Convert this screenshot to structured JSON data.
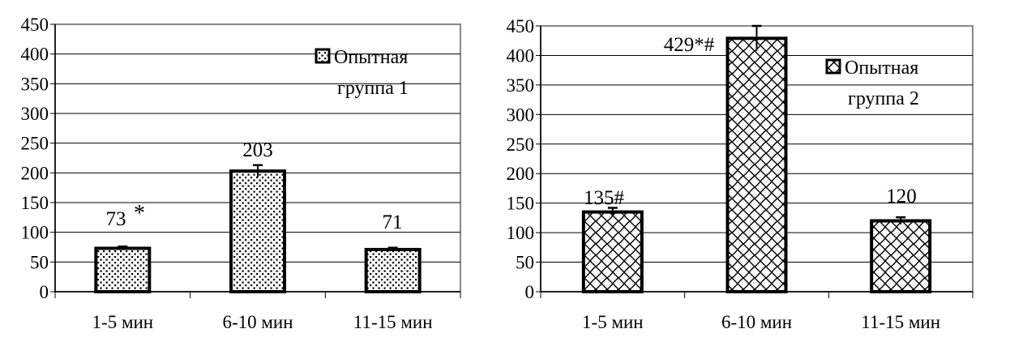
{
  "chart_data": [
    {
      "type": "bar",
      "categories": [
        "1-5 мин",
        "6-10 мин",
        "11-15 мин"
      ],
      "values": [
        73,
        203,
        71
      ],
      "errors": [
        3,
        10,
        3
      ],
      "data_labels": [
        "73",
        "203",
        "71"
      ],
      "annotations": [
        "*",
        "",
        ""
      ],
      "series": [
        {
          "name": "Опытная группа 1",
          "values": [
            73,
            203,
            71
          ]
        }
      ],
      "legend": {
        "line1": "Опытная",
        "line2": "группа 1",
        "placement": "top-right"
      },
      "yticks": [
        "0",
        "50",
        "100",
        "150",
        "200",
        "250",
        "300",
        "350",
        "400",
        "450"
      ],
      "ylim": [
        0,
        450
      ],
      "grid": true,
      "pattern": "dots",
      "title": "",
      "xlabel": "",
      "ylabel": ""
    },
    {
      "type": "bar",
      "categories": [
        "1-5 мин",
        "6-10 мин",
        "11-15 мин"
      ],
      "values": [
        135,
        429,
        120
      ],
      "errors": [
        7,
        21,
        6
      ],
      "data_labels": [
        "135#",
        "429*#",
        "120"
      ],
      "annotations": [
        "",
        "",
        ""
      ],
      "series": [
        {
          "name": "Опытная группа 2",
          "values": [
            135,
            429,
            120
          ]
        }
      ],
      "legend": {
        "line1": "Опытная",
        "line2": "группа 2",
        "placement": "top-right"
      },
      "yticks": [
        "0",
        "50",
        "100",
        "150",
        "200",
        "250",
        "300",
        "350",
        "400",
        "450"
      ],
      "ylim": [
        0,
        450
      ],
      "grid": true,
      "pattern": "wavy-crosshatch",
      "title": "",
      "xlabel": "",
      "ylabel": ""
    }
  ]
}
